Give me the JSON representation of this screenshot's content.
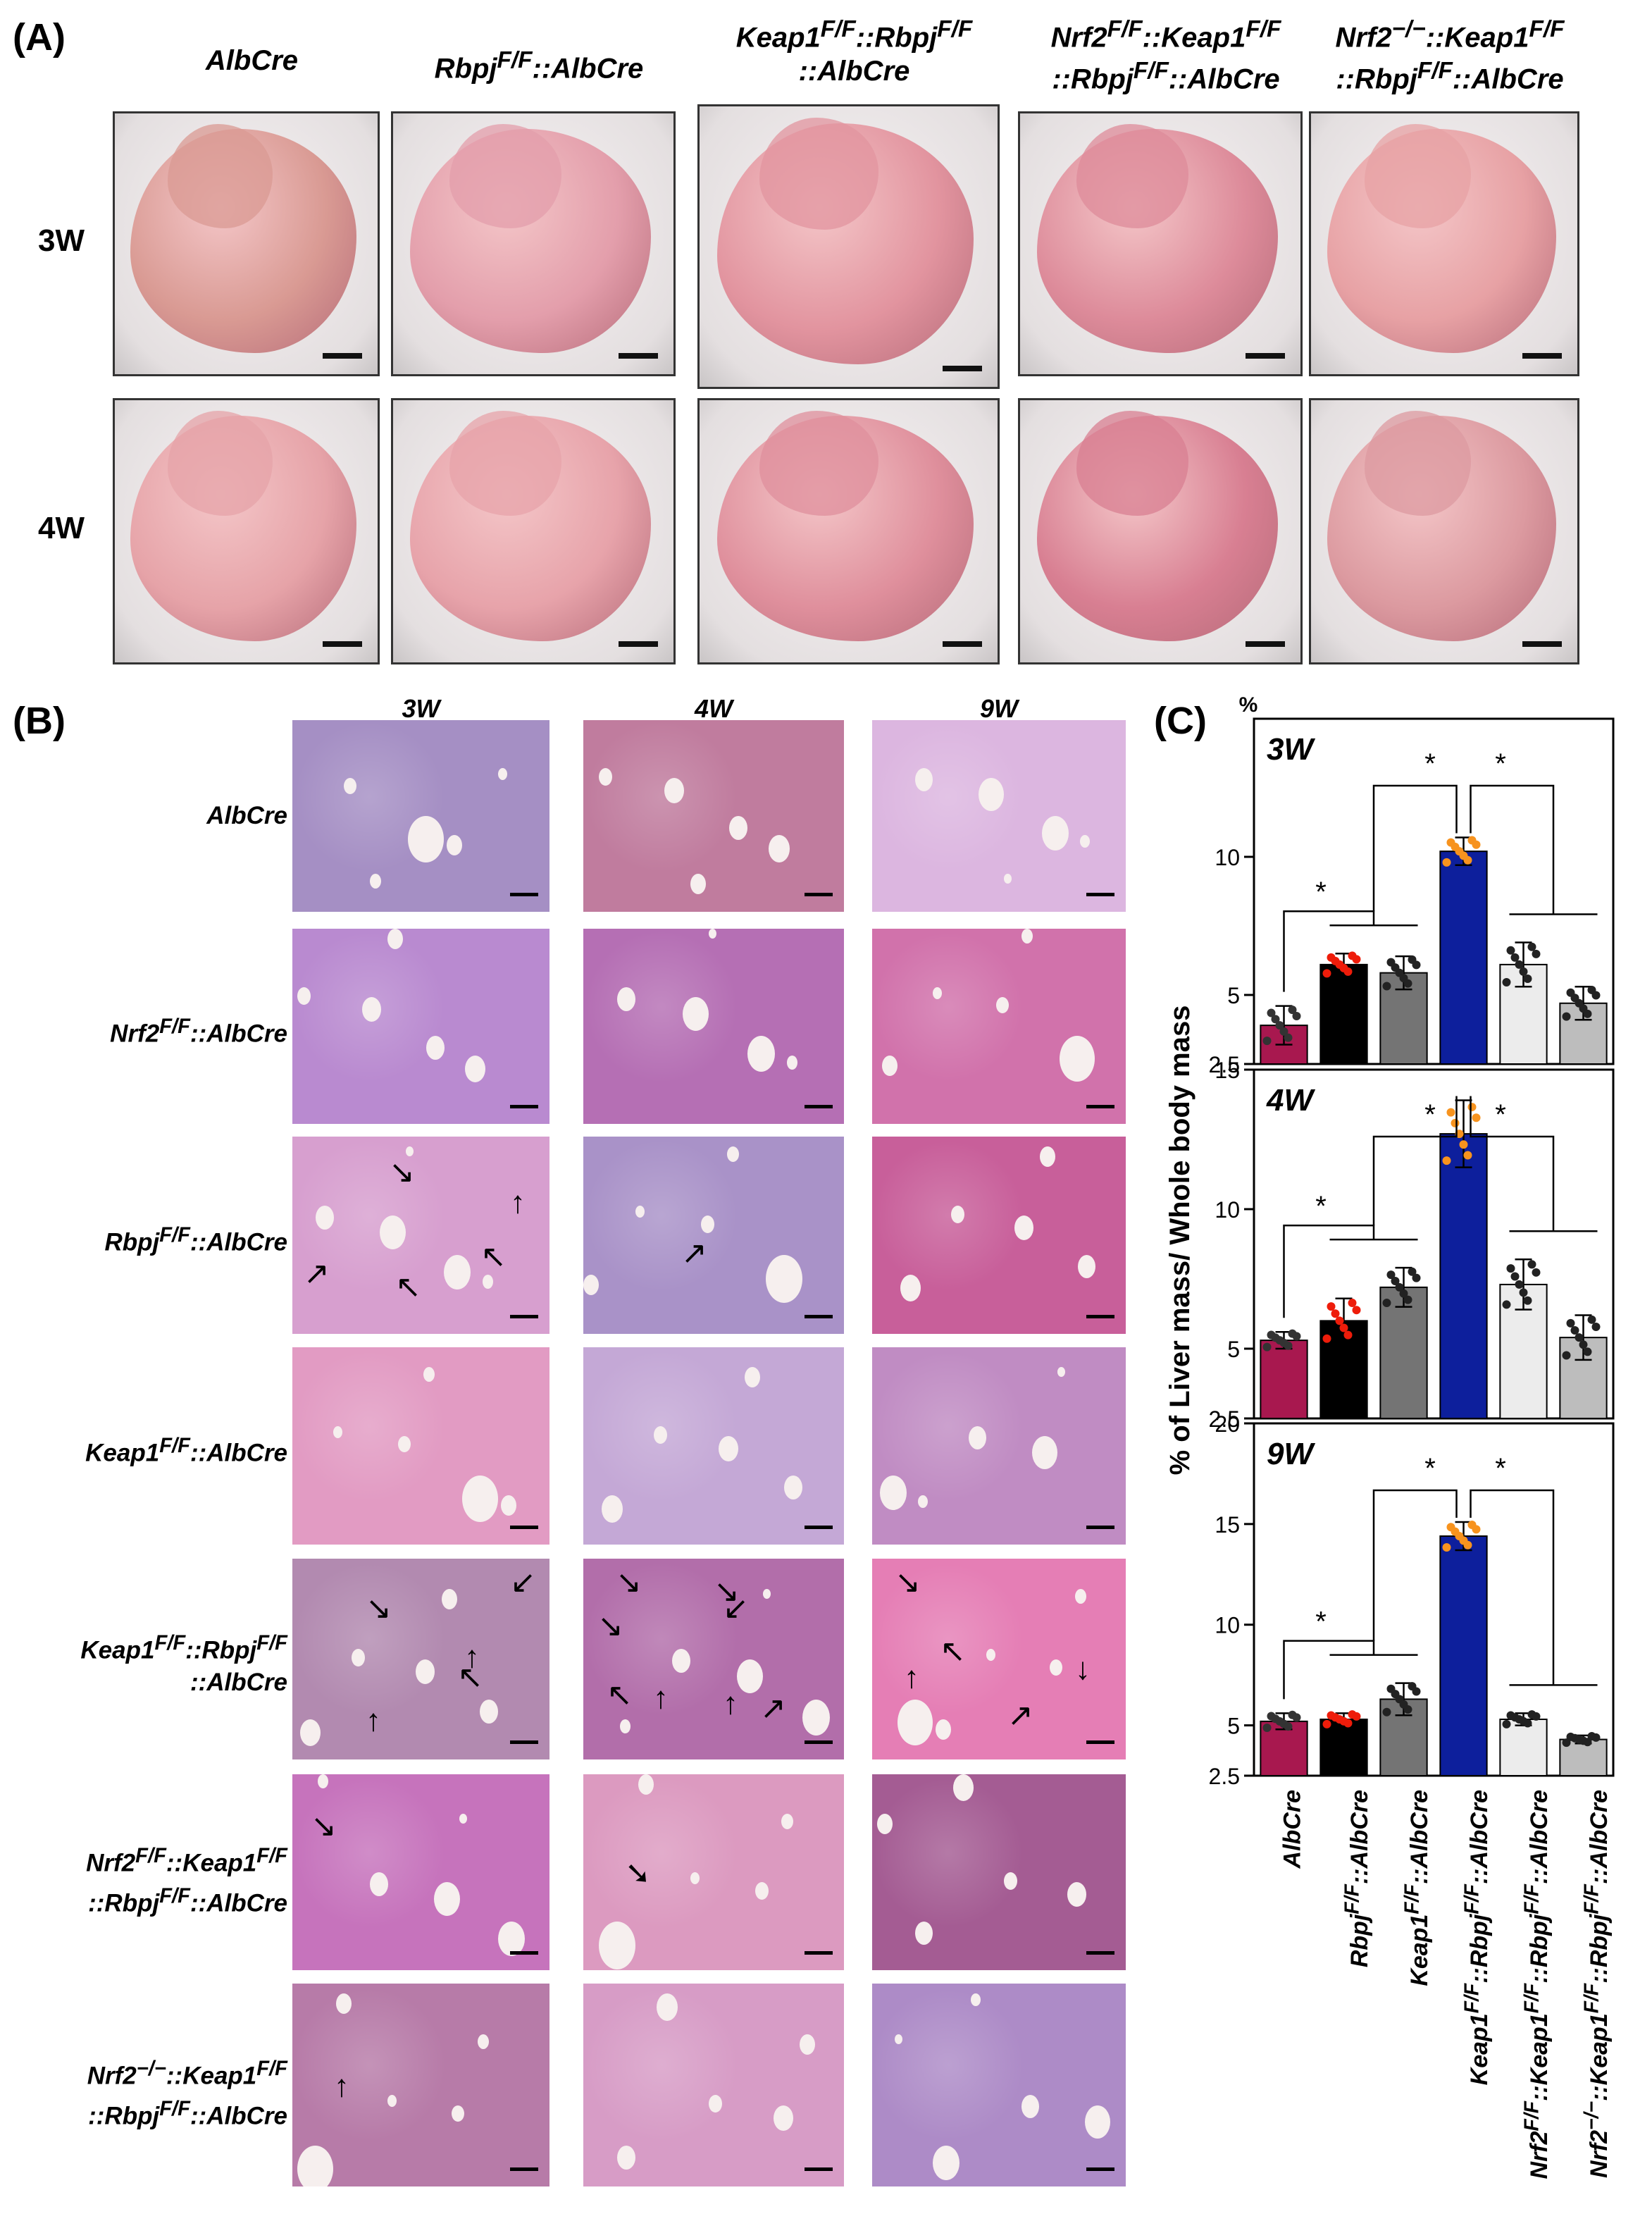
{
  "panels": {
    "a": "(A)",
    "b": "(B)",
    "c": "(C)"
  },
  "panel_a": {
    "columns": [
      {
        "line1": "AlbCre",
        "line2": ""
      },
      {
        "line1": "Rbpj<sup>F/F</sup>::AlbCre",
        "line2": ""
      },
      {
        "line1": "Keap1<sup>F/F</sup>::Rbpj<sup>F/F</sup>",
        "line2": "::AlbCre"
      },
      {
        "line1": "Nrf2<sup>F/F</sup>::Keap1<sup>F/F</sup>",
        "line2": "::Rbpj<sup>F/F</sup>::AlbCre"
      },
      {
        "line1": "Nrf2<sup>−/−</sup>::Keap1<sup>F/F</sup>",
        "line2": "::Rbpj<sup>F/F</sup>::AlbCre"
      }
    ],
    "rows": [
      "3W",
      "4W"
    ],
    "liver_colors": [
      [
        "#d99a93",
        "#e39eab",
        "#e2949f",
        "#dd8b9a",
        "#e7a1a4"
      ],
      [
        "#e6a3a8",
        "#e7a3aa",
        "#df8f9c",
        "#d87f92",
        "#dc9aa0"
      ]
    ]
  },
  "panel_b": {
    "columns": [
      "3W",
      "4W",
      "9W"
    ],
    "rows": [
      {
        "line1": "AlbCre",
        "line2": ""
      },
      {
        "line1": "Nrf2<sup>F/F</sup>::AlbCre",
        "line2": ""
      },
      {
        "line1": "Rbpj<sup>F/F</sup>::AlbCre",
        "line2": ""
      },
      {
        "line1": "Keap1<sup>F/F</sup>::AlbCre",
        "line2": ""
      },
      {
        "line1": "Keap1<sup>F/F</sup>::Rbpj<sup>F/F</sup>",
        "line2": "::AlbCre"
      },
      {
        "line1": "Nrf2<sup>F/F</sup>::Keap1<sup>F/F</sup>",
        "line2": "::Rbpj<sup>F/F</sup>::AlbCre"
      },
      {
        "line1": "Nrf2<sup>−/−</sup>::Keap1<sup>F/F</sup>",
        "line2": "::Rbpj<sup>F/F</sup>::AlbCre"
      }
    ],
    "tile_colors": [
      [
        "#a58fc4",
        "#c07c9e",
        "#dcb6e0"
      ],
      [
        "#b98ad0",
        "#b56fb4",
        "#d172ab"
      ],
      [
        "#d79fcf",
        "#a992c8",
        "#c85f9a"
      ],
      [
        "#e29bc3",
        "#c4a8d6",
        "#c08cc3"
      ],
      [
        "#b28ab0",
        "#b26eaa",
        "#e57eb5"
      ],
      [
        "#c673bc",
        "#dc9ac0",
        "#a45c93"
      ],
      [
        "#b77ba8",
        "#d79cc6",
        "#ad8bc7"
      ]
    ]
  },
  "chart_data": [
    {
      "type": "bar",
      "title": "3W",
      "ylabel": "% of Liver mass/ Whole body mass",
      "yunit": "%",
      "ylim": [
        2.5,
        15
      ],
      "yticks": [
        "2.5",
        "5",
        "10"
      ],
      "categories": [
        "AlbCre",
        "Rbpj<sup>F/F</sup>::AlbCre",
        "Keap1<sup>F/F</sup>::AlbCre",
        "Keap1<sup>F/F</sup>::Rbpj<sup>F/F</sup>::AlbCre",
        "Nrf2<sup>F/F</sup>::Keap1<sup>F/F</sup>::Rbpj<sup>F/F</sup>::AlbCre",
        "Nrf2<sup>−/−</sup>::Keap1<sup>F/F</sup>::Rbpj<sup>F/F</sup>::AlbCre"
      ],
      "values": [
        3.9,
        6.1,
        5.8,
        10.2,
        6.1,
        4.7
      ],
      "errors": [
        0.7,
        0.4,
        0.6,
        0.5,
        0.8,
        0.6
      ],
      "significance": [
        "*",
        "*",
        "*"
      ]
    },
    {
      "type": "bar",
      "title": "4W",
      "ylim": [
        2.5,
        15
      ],
      "yticks": [
        "2.5",
        "5",
        "10",
        "15"
      ],
      "values": [
        5.3,
        6.0,
        7.2,
        12.7,
        7.3,
        5.4
      ],
      "errors": [
        0.3,
        0.8,
        0.7,
        1.2,
        0.9,
        0.8
      ],
      "significance": [
        "*",
        "*",
        "*"
      ]
    },
    {
      "type": "bar",
      "title": "9W",
      "ylim": [
        2.5,
        20
      ],
      "yticks": [
        "2.5",
        "5",
        "10",
        "15",
        "20"
      ],
      "values": [
        5.2,
        5.3,
        6.3,
        14.4,
        5.3,
        4.3
      ],
      "errors": [
        0.4,
        0.3,
        0.8,
        0.7,
        0.3,
        0.2
      ],
      "significance": [
        "*",
        "*",
        "*"
      ]
    }
  ],
  "chart_colors": {
    "fills": [
      "#a8184f",
      "#000000",
      "#747474",
      "#0d1f9c",
      "#ececec",
      "#bdbdbd"
    ],
    "dots": [
      "#333333",
      "#ee1c0a",
      "#222222",
      "#f7931e",
      "#222222",
      "#222222"
    ]
  }
}
